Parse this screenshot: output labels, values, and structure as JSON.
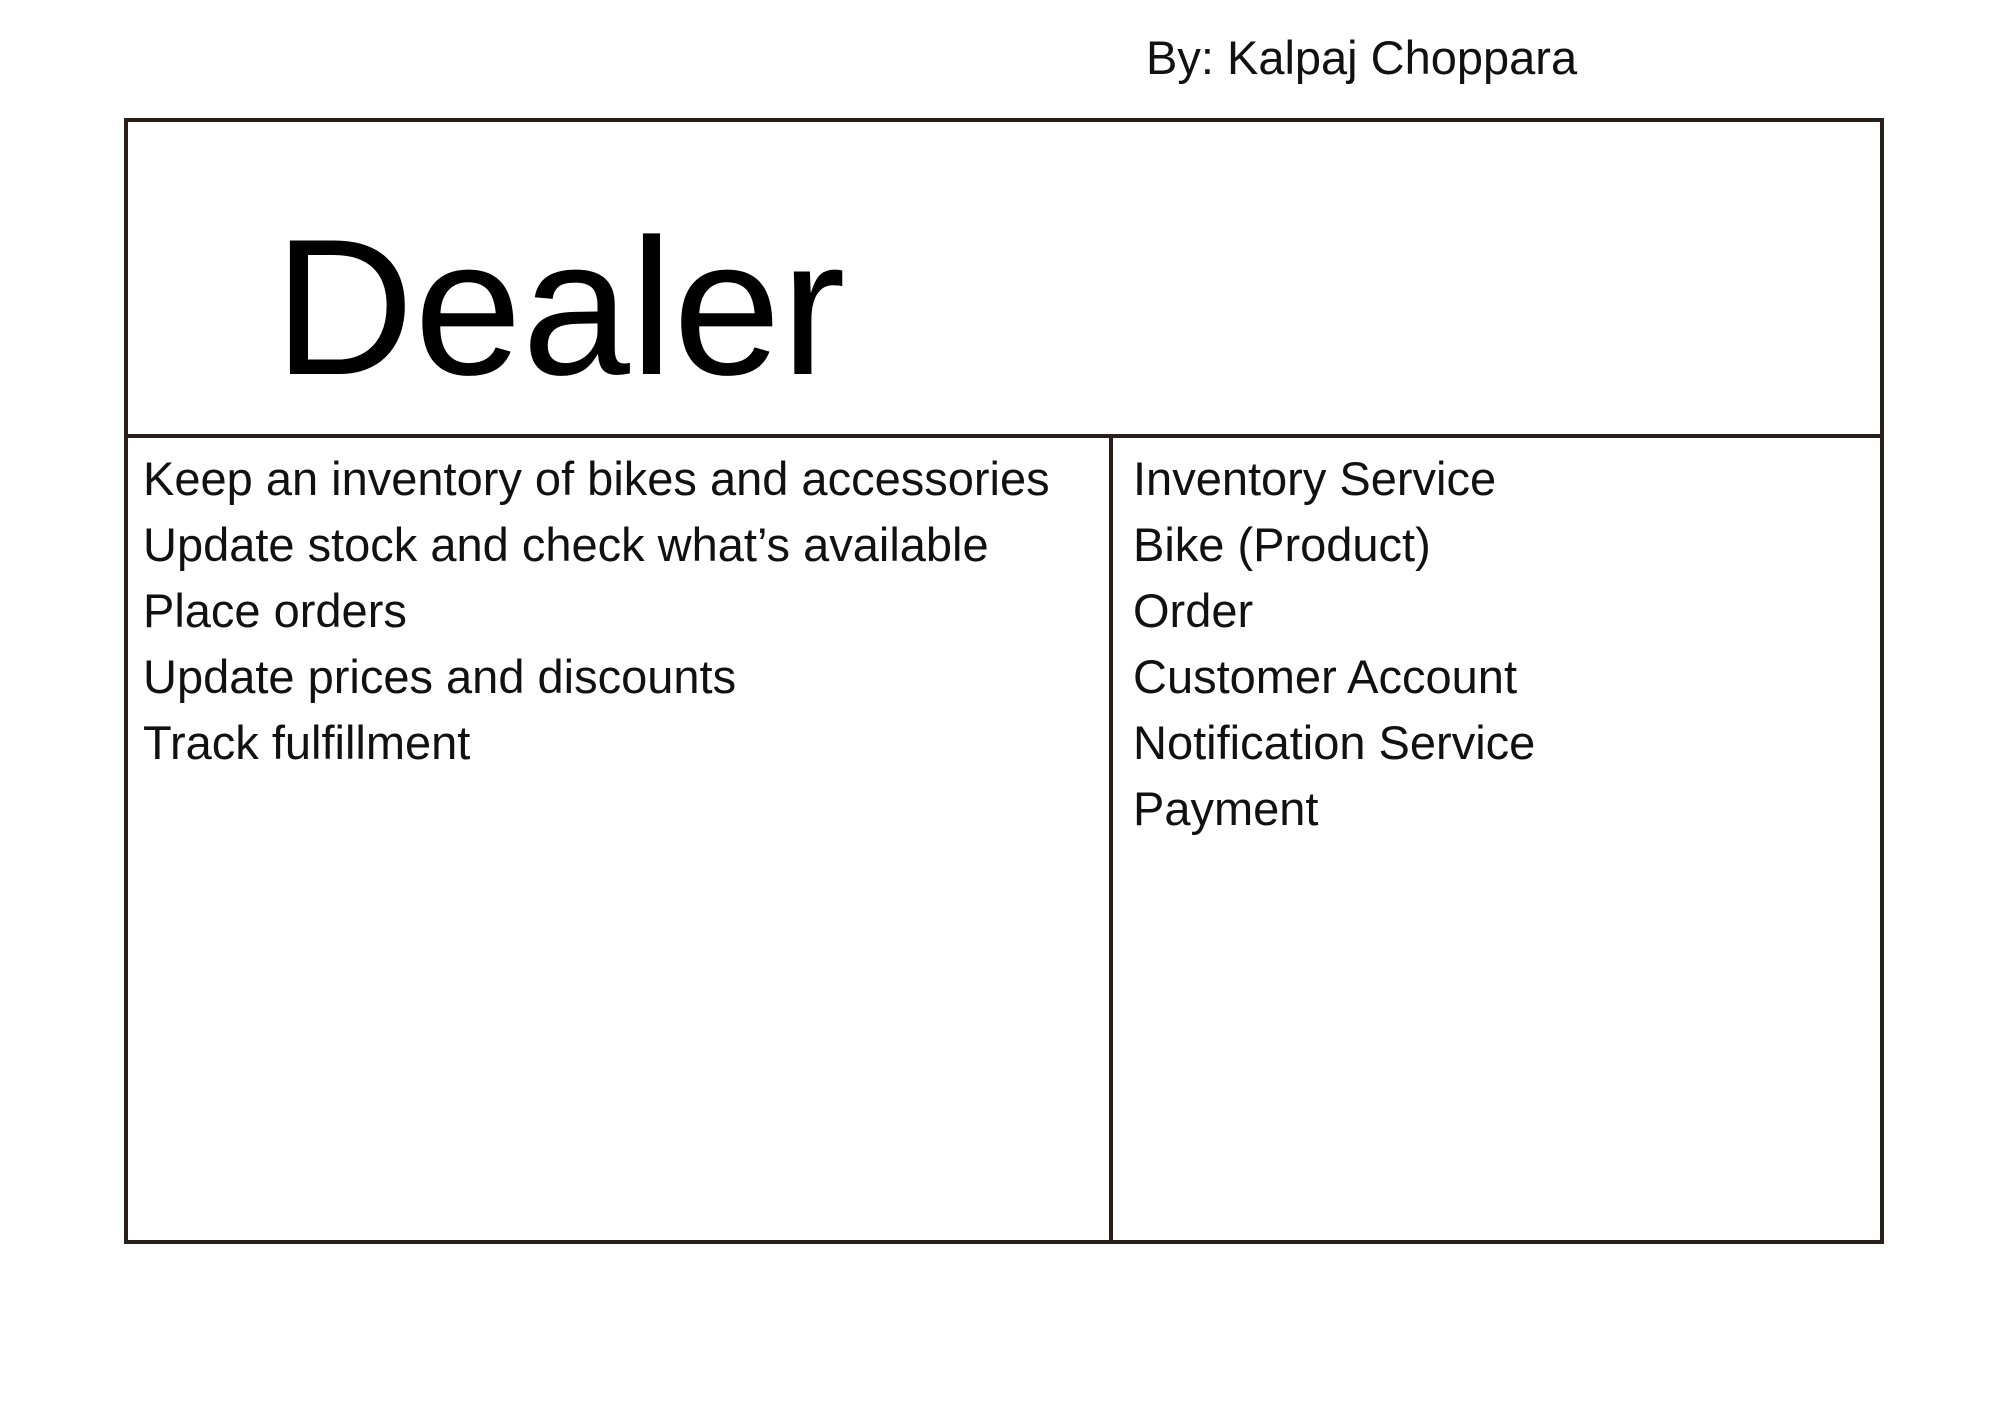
{
  "author": "By: Kalpaj Choppara",
  "card": {
    "title": "Dealer",
    "responsibilities": [
      "Keep an inventory of bikes and accessories",
      "Update stock and check what’s available",
      "Place orders",
      "Update prices and discounts",
      "Track fulfillment"
    ],
    "collaborators": [
      "Inventory Service",
      "Bike (Product)",
      "Order",
      "Customer Account",
      "Notification Service",
      "Payment"
    ]
  },
  "colors": {
    "border": "#2a1f18",
    "text": "#111111",
    "background": "#ffffff"
  }
}
